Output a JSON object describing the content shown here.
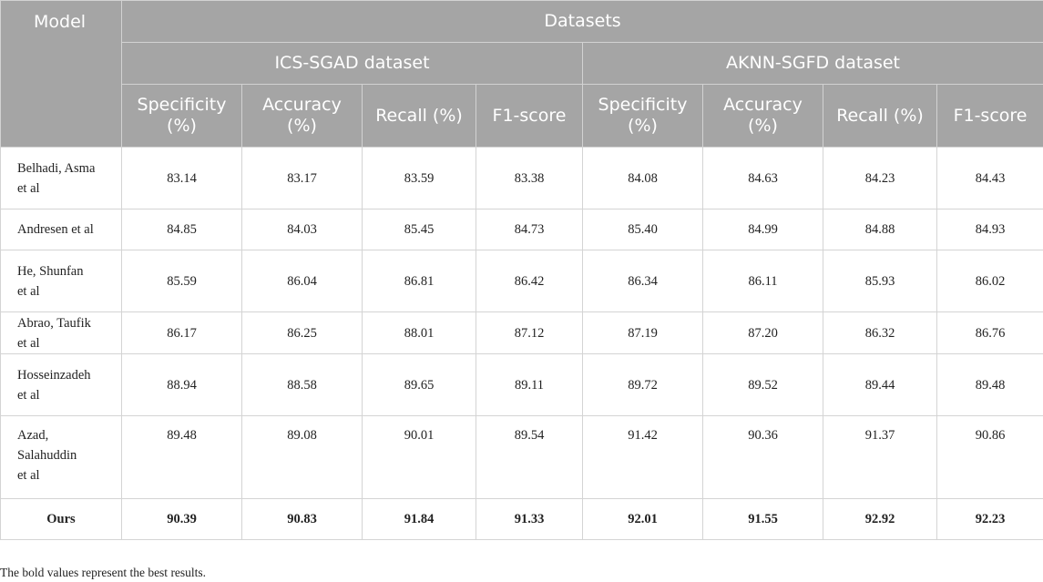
{
  "table": {
    "model_header": "Model",
    "datasets_header": "Datasets",
    "groups": [
      "ICS-SGAD dataset",
      "AKNN-SGFD dataset"
    ],
    "metrics": [
      [
        "Specificity",
        "(%)"
      ],
      [
        "Accuracy",
        "(%)"
      ],
      [
        "Recall (%)"
      ],
      [
        "F1-score"
      ],
      [
        "Specificity",
        "(%)"
      ],
      [
        "Accuracy",
        "(%)"
      ],
      [
        "Recall (%)"
      ],
      [
        "F1-score"
      ]
    ],
    "rows": [
      {
        "model": [
          "Belhadi, Asma",
          "et al"
        ],
        "values": [
          "83.14",
          "83.17",
          "83.59",
          "83.38",
          "84.08",
          "84.63",
          "84.23",
          "84.43"
        ]
      },
      {
        "model": [
          "Andresen et al"
        ],
        "values": [
          "84.85",
          "84.03",
          "85.45",
          "84.73",
          "85.40",
          "84.99",
          "84.88",
          "84.93"
        ]
      },
      {
        "model": [
          "He, Shunfan",
          "et al"
        ],
        "values": [
          "85.59",
          "86.04",
          "86.81",
          "86.42",
          "86.34",
          "86.11",
          "85.93",
          "86.02"
        ]
      },
      {
        "model": [
          "Abrao, Taufik",
          "et al"
        ],
        "values": [
          "86.17",
          "86.25",
          "88.01",
          "87.12",
          "87.19",
          "87.20",
          "86.32",
          "86.76"
        ]
      },
      {
        "model": [
          "Hosseinzadeh",
          "et al"
        ],
        "values": [
          "88.94",
          "88.58",
          "89.65",
          "89.11",
          "89.72",
          "89.52",
          "89.44",
          "89.48"
        ]
      },
      {
        "model": [
          "Azad,",
          "Salahuddin",
          "et al"
        ],
        "values": [
          "89.48",
          "89.08",
          "90.01",
          "89.54",
          "91.42",
          "90.36",
          "91.37",
          "90.86"
        ]
      },
      {
        "model": [
          "Ours"
        ],
        "values": [
          "90.39",
          "90.83",
          "91.84",
          "91.33",
          "92.01",
          "91.55",
          "92.92",
          "92.23"
        ],
        "best": true
      }
    ]
  },
  "footnote": "The bold values represent the best results."
}
